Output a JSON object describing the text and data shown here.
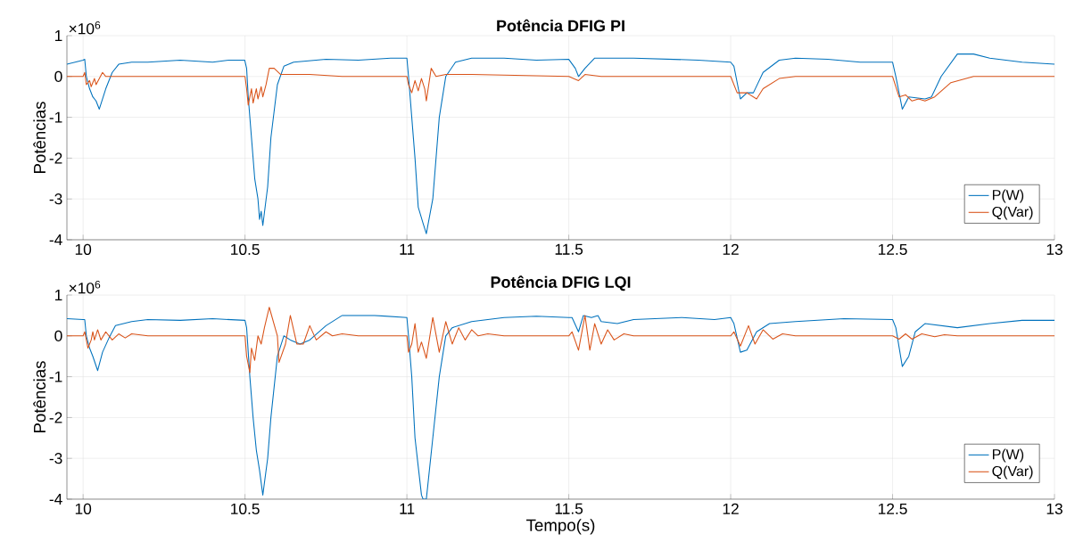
{
  "chart_data": [
    {
      "type": "line",
      "title": "Potência DFIG PI",
      "ylabel": "Potências",
      "annotations": [
        "×10$^{6}$"
      ],
      "xlim": [
        9.95,
        13
      ],
      "ylim": [
        -4,
        1
      ],
      "xticks": [
        10,
        10.5,
        11,
        11.5,
        12,
        12.5,
        13
      ],
      "yticks": [
        -4,
        -3,
        -2,
        -1,
        0,
        1
      ],
      "grid": true,
      "legend": "bottom right",
      "line_style": "solid",
      "series": [
        {
          "name": "P(W)",
          "color": "#0072bd",
          "x": [
            9.95,
            10.0,
            10.005,
            10.01,
            10.02,
            10.03,
            10.04,
            10.05,
            10.07,
            10.09,
            10.11,
            10.15,
            10.2,
            10.3,
            10.4,
            10.45,
            10.499,
            10.505,
            10.51,
            10.52,
            10.53,
            10.54,
            10.545,
            10.55,
            10.555,
            10.57,
            10.58,
            10.6,
            10.62,
            10.65,
            10.75,
            10.85,
            10.95,
            11.0,
            11.005,
            11.015,
            11.025,
            11.035,
            11.05,
            11.06,
            11.08,
            11.1,
            11.12,
            11.15,
            11.2,
            11.3,
            11.4,
            11.5,
            11.52,
            11.53,
            11.55,
            11.58,
            11.7,
            11.9,
            12.0,
            12.01,
            12.03,
            12.05,
            12.07,
            12.1,
            12.15,
            12.2,
            12.3,
            12.4,
            12.5,
            12.51,
            12.53,
            12.55,
            12.6,
            12.62,
            12.65,
            12.7,
            12.75,
            12.8,
            12.9,
            13.0
          ],
          "values": [
            0.3,
            0.4,
            0.42,
            0.0,
            -0.3,
            -0.5,
            -0.6,
            -0.8,
            -0.3,
            0.1,
            0.3,
            0.35,
            0.35,
            0.4,
            0.35,
            0.4,
            0.4,
            0.2,
            -0.5,
            -1.5,
            -2.5,
            -3.0,
            -3.5,
            -3.3,
            -3.65,
            -2.7,
            -1.5,
            -0.2,
            0.25,
            0.35,
            0.42,
            0.4,
            0.45,
            0.45,
            0.0,
            -1.0,
            -2.0,
            -3.2,
            -3.6,
            -3.85,
            -3.0,
            -1.0,
            0.0,
            0.35,
            0.45,
            0.45,
            0.4,
            0.42,
            0.2,
            0.0,
            0.2,
            0.45,
            0.45,
            0.4,
            0.35,
            0.25,
            -0.55,
            -0.4,
            -0.4,
            0.1,
            0.4,
            0.45,
            0.42,
            0.35,
            0.35,
            0.0,
            -0.8,
            -0.5,
            -0.55,
            -0.5,
            0.0,
            0.55,
            0.55,
            0.45,
            0.35,
            0.3
          ]
        },
        {
          "name": "Q(Var)",
          "color": "#d95319",
          "x": [
            9.95,
            10.0,
            10.005,
            10.01,
            10.02,
            10.025,
            10.035,
            10.04,
            10.05,
            10.06,
            10.07,
            10.5,
            10.505,
            10.51,
            10.52,
            10.525,
            10.535,
            10.54,
            10.55,
            10.555,
            10.565,
            10.575,
            10.59,
            10.61,
            10.7,
            10.8,
            11.0,
            11.005,
            11.015,
            11.025,
            11.035,
            11.045,
            11.055,
            11.06,
            11.075,
            11.09,
            11.12,
            11.2,
            11.5,
            11.53,
            11.55,
            11.6,
            12.0,
            12.02,
            12.05,
            12.08,
            12.1,
            12.15,
            12.2,
            12.5,
            12.52,
            12.54,
            12.56,
            12.58,
            12.6,
            12.63,
            12.68,
            12.75,
            13.0
          ],
          "values": [
            0,
            0,
            0.1,
            -0.2,
            -0.1,
            -0.25,
            -0.05,
            -0.2,
            -0.05,
            0.1,
            0.0,
            0,
            -0.3,
            -0.7,
            -0.3,
            -0.65,
            -0.3,
            -0.55,
            -0.25,
            -0.5,
            -0.2,
            0.2,
            0.2,
            0.05,
            0.05,
            0.0,
            0,
            -0.2,
            -0.4,
            -0.1,
            -0.35,
            -0.05,
            -0.3,
            -0.6,
            0.2,
            0.0,
            0.05,
            0.05,
            0,
            -0.1,
            0.05,
            0.0,
            0.0,
            -0.4,
            -0.4,
            -0.55,
            -0.3,
            -0.05,
            0,
            0.0,
            -0.5,
            -0.45,
            -0.6,
            -0.55,
            -0.6,
            -0.5,
            -0.15,
            0.0,
            0.0
          ]
        }
      ]
    },
    {
      "type": "line",
      "title": "Potência DFIG LQI",
      "xlabel": "Tempo(s)",
      "ylabel": "Potências",
      "annotations": [
        "×10$^{6}$"
      ],
      "xlim": [
        9.95,
        13
      ],
      "ylim": [
        -4,
        1
      ],
      "xticks": [
        10,
        10.5,
        11,
        11.5,
        12,
        12.5,
        13
      ],
      "yticks": [
        -4,
        -3,
        -2,
        -1,
        0,
        1
      ],
      "grid": true,
      "legend": "bottom right",
      "line_style": "solid",
      "series": [
        {
          "name": "P(W)",
          "color": "#0072bd",
          "x": [
            9.95,
            10.0,
            10.005,
            10.01,
            10.02,
            10.03,
            10.045,
            10.06,
            10.08,
            10.1,
            10.15,
            10.2,
            10.3,
            10.4,
            10.5,
            10.505,
            10.515,
            10.525,
            10.535,
            10.545,
            10.555,
            10.57,
            10.58,
            10.6,
            10.62,
            10.64,
            10.67,
            10.7,
            10.75,
            10.8,
            10.9,
            11.0,
            11.005,
            11.015,
            11.025,
            11.035,
            11.045,
            11.05,
            11.06,
            11.08,
            11.1,
            11.12,
            11.14,
            11.2,
            11.3,
            11.4,
            11.5,
            11.51,
            11.53,
            11.545,
            11.57,
            11.59,
            11.6,
            11.65,
            11.7,
            11.85,
            11.95,
            12.0,
            12.01,
            12.03,
            12.05,
            12.08,
            12.12,
            12.2,
            12.35,
            12.5,
            12.51,
            12.53,
            12.55,
            12.57,
            12.6,
            12.7,
            12.8,
            12.9,
            13.0
          ],
          "values": [
            0.42,
            0.4,
            0.4,
            0.0,
            -0.3,
            -0.5,
            -0.85,
            -0.4,
            -0.05,
            0.25,
            0.35,
            0.4,
            0.38,
            0.42,
            0.38,
            0.2,
            -1.0,
            -2.0,
            -2.8,
            -3.3,
            -3.9,
            -3.0,
            -2.0,
            -0.5,
            0.0,
            -0.1,
            -0.2,
            -0.1,
            0.25,
            0.5,
            0.5,
            0.45,
            0.0,
            -1.0,
            -2.5,
            -3.2,
            -3.9,
            -4.0,
            -4.0,
            -2.5,
            -1.0,
            0.0,
            0.2,
            0.35,
            0.45,
            0.48,
            0.45,
            0.45,
            0.1,
            0.5,
            0.45,
            0.5,
            0.35,
            0.3,
            0.4,
            0.45,
            0.4,
            0.45,
            0.3,
            -0.4,
            -0.35,
            0.1,
            0.3,
            0.35,
            0.42,
            0.4,
            0.2,
            -0.75,
            -0.5,
            0.1,
            0.3,
            0.2,
            0.3,
            0.38,
            0.38
          ]
        },
        {
          "name": "Q(Var)",
          "color": "#d95319",
          "x": [
            9.95,
            10.0,
            10.005,
            10.015,
            10.025,
            10.03,
            10.035,
            10.045,
            10.055,
            10.07,
            10.09,
            10.11,
            10.13,
            10.15,
            10.2,
            10.5,
            10.505,
            10.515,
            10.52,
            10.53,
            10.54,
            10.55,
            10.56,
            10.575,
            10.6,
            10.605,
            10.625,
            10.64,
            10.66,
            10.68,
            10.7,
            10.72,
            10.75,
            10.77,
            10.8,
            10.85,
            11.0,
            11.005,
            11.015,
            11.025,
            11.035,
            11.045,
            11.06,
            11.08,
            11.1,
            11.12,
            11.14,
            11.16,
            11.18,
            11.2,
            11.22,
            11.25,
            11.3,
            11.5,
            11.51,
            11.53,
            11.55,
            11.565,
            11.58,
            11.6,
            11.62,
            11.64,
            11.67,
            11.7,
            12.0,
            12.01,
            12.03,
            12.055,
            12.075,
            12.1,
            12.13,
            12.16,
            12.2,
            12.5,
            12.52,
            12.54,
            12.56,
            12.59,
            12.63,
            12.66,
            12.7,
            13.0
          ],
          "values": [
            0,
            0,
            0.1,
            -0.3,
            -0.1,
            0.1,
            -0.1,
            0.15,
            -0.1,
            0.1,
            -0.1,
            0.05,
            -0.05,
            0.05,
            0.0,
            0,
            -0.5,
            -0.9,
            -0.3,
            -0.6,
            0.0,
            -0.2,
            0.2,
            0.7,
            0.0,
            -0.65,
            -0.2,
            0.5,
            -0.2,
            -0.2,
            0.25,
            -0.1,
            0.1,
            0.0,
            0.05,
            0.0,
            0.0,
            -0.4,
            -0.2,
            0.3,
            -0.4,
            -0.15,
            -0.55,
            0.45,
            -0.4,
            0.35,
            -0.2,
            0.2,
            -0.1,
            0.15,
            0.0,
            0.05,
            0.0,
            0.0,
            0.1,
            -0.35,
            0.5,
            -0.35,
            0.3,
            -0.2,
            0.15,
            -0.1,
            0.05,
            0.0,
            0.0,
            0.1,
            -0.25,
            0.25,
            -0.2,
            0.15,
            -0.08,
            0.05,
            0.0,
            0.0,
            -0.08,
            0.05,
            -0.08,
            0.05,
            -0.02,
            0.03,
            0.0,
            0
          ]
        }
      ]
    }
  ]
}
